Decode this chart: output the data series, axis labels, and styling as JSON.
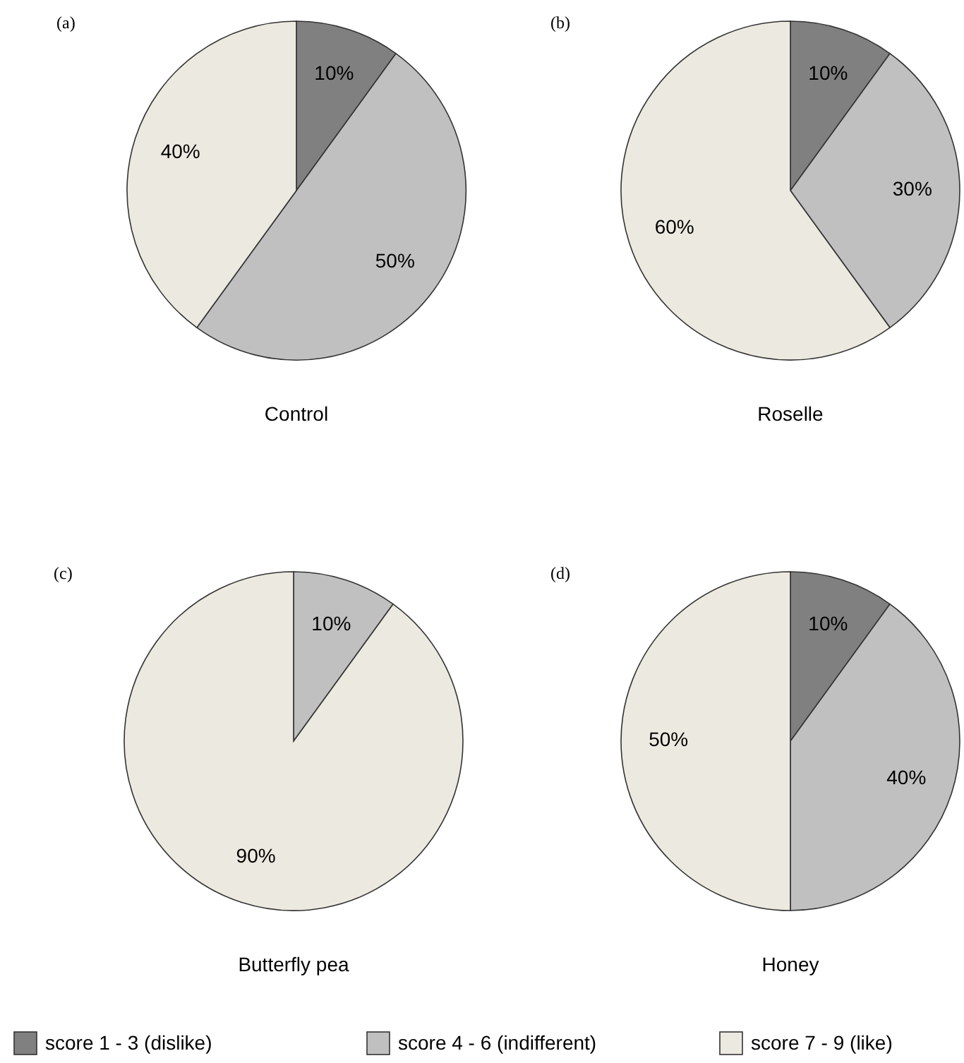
{
  "chart_data": [
    {
      "type": "pie",
      "title": "(a)",
      "xlabel": "Control",
      "categories": [
        null,
        null,
        null
      ],
      "values": [
        10,
        50,
        40
      ],
      "value_labels": [
        "10%",
        "50%",
        "40%"
      ],
      "colors": [
        "#808080",
        "#c0c0c0",
        "#ece9e0"
      ],
      "legend": false
    },
    {
      "type": "pie",
      "title": "(b)",
      "xlabel": "Roselle",
      "categories": [
        null,
        null,
        null
      ],
      "values": [
        10,
        30,
        60
      ],
      "value_labels": [
        "10%",
        "30%",
        "60%"
      ],
      "colors": [
        "#808080",
        "#c0c0c0",
        "#ece9e0"
      ],
      "legend": false
    },
    {
      "type": "pie",
      "title": "(c)",
      "xlabel": "Butterfly pea",
      "categories": [
        null,
        null
      ],
      "values": [
        10,
        90
      ],
      "value_labels": [
        "10%",
        "90%"
      ],
      "colors": [
        "#c0c0c0",
        "#ece9e0"
      ],
      "legend": false
    },
    {
      "type": "pie",
      "title": "(d)",
      "xlabel": "Honey",
      "categories": [
        "score 1 - 3 (dislike)",
        "score 4 - 6 (indifferent)",
        "score 7 - 9 (like)"
      ],
      "values": [
        10,
        40,
        50
      ],
      "value_labels": [
        "10%",
        "40%",
        "50%"
      ],
      "colors": [
        "#808080",
        "#c0c0c0",
        "#ece9e0"
      ],
      "legend": "bottom"
    }
  ]
}
